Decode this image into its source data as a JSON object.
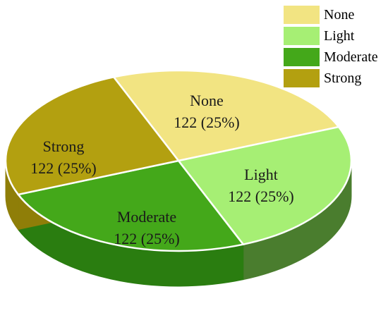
{
  "chart_data": {
    "type": "pie",
    "style": "3d",
    "title": "",
    "legend_position": "top-right",
    "slices": [
      {
        "label": "None",
        "value": 122,
        "percent": "25%",
        "color": "#f2e482",
        "color_side": "#c9bc5a"
      },
      {
        "label": "Light",
        "value": 122,
        "percent": "25%",
        "color": "#a6ef74",
        "color_side": "#4a7d2e"
      },
      {
        "label": "Moderate",
        "value": 122,
        "percent": "25%",
        "color": "#44a81a",
        "color_side": "#2a7d10"
      },
      {
        "label": "Strong",
        "value": 122,
        "percent": "25%",
        "color": "#b3a010",
        "color_side": "#8f7e08"
      }
    ]
  }
}
